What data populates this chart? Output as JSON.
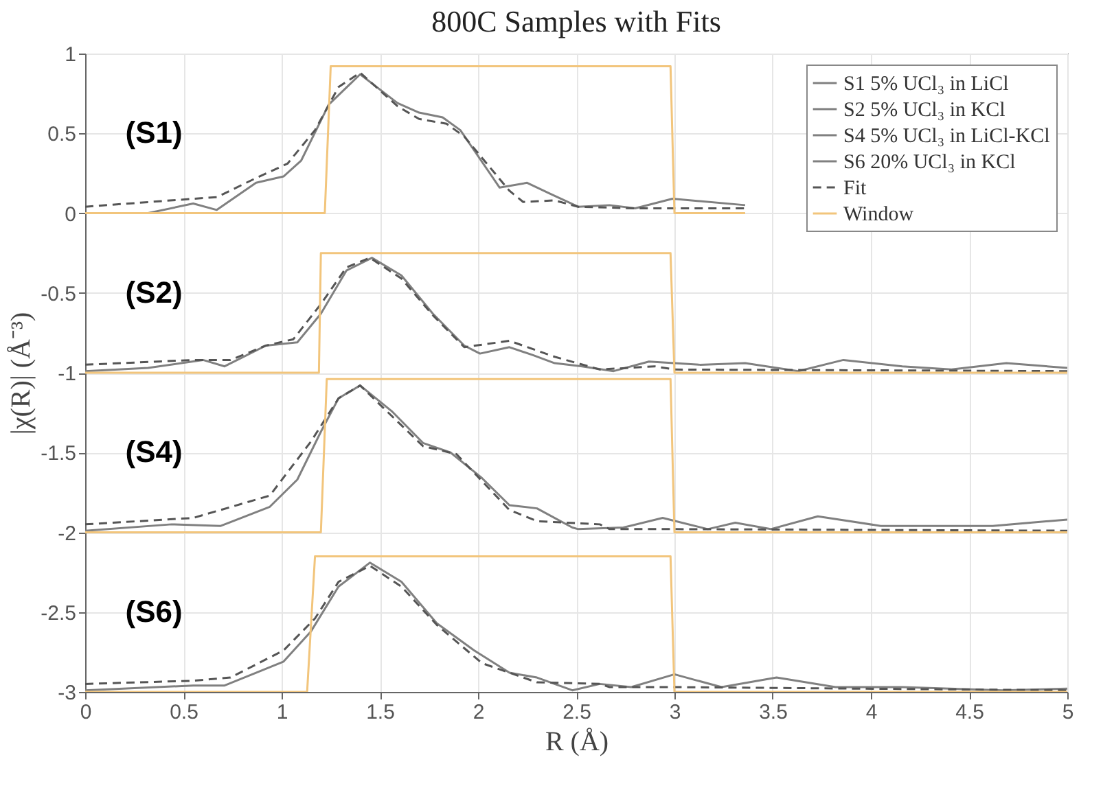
{
  "chart_data": {
    "type": "line",
    "title": "800C Samples with Fits",
    "xlabel": "R (Å)",
    "ylabel": "|χ(R)| (Å⁻³)",
    "xlim": [
      0,
      5
    ],
    "ylim": [
      -3,
      1
    ],
    "xticks": [
      0,
      0.5,
      1,
      1.5,
      2,
      2.5,
      3,
      3.5,
      4,
      4.5,
      5
    ],
    "yticks": [
      -3,
      -2.5,
      -2,
      -1.5,
      -1,
      -0.5,
      0,
      0.5,
      1
    ],
    "grid": true,
    "legend": "top right",
    "annotations": [
      "(S1)",
      "(S2)",
      "(S4)",
      "(S6)"
    ],
    "series": [
      {
        "name": "S1 5% UCl₃ in LiCl",
        "color": "#808080",
        "line_style": "solid",
        "x": [
          0,
          0.32,
          0.55,
          0.67,
          0.87,
          1.01,
          1.1,
          1.24,
          1.4,
          1.59,
          1.7,
          1.82,
          1.91,
          2.11,
          2.25,
          2.37,
          2.51,
          2.67,
          2.8,
          2.99,
          3.36
        ],
        "values": [
          0,
          0,
          0.06,
          0.02,
          0.19,
          0.23,
          0.33,
          0.68,
          0.87,
          0.69,
          0.63,
          0.6,
          0.52,
          0.16,
          0.19,
          0.12,
          0.04,
          0.05,
          0.03,
          0.09,
          0.05
        ]
      },
      {
        "name": "S2 5% UCl₃ in KCl",
        "color": "#808080",
        "line_style": "solid",
        "x": [
          0,
          0.32,
          0.6,
          0.71,
          0.92,
          1.08,
          1.2,
          1.33,
          1.46,
          1.61,
          1.77,
          1.93,
          2.01,
          2.16,
          2.28,
          2.39,
          2.53,
          2.69,
          2.87,
          3.13,
          3.36,
          3.63,
          3.86,
          4.16,
          4.41,
          4.69,
          5
        ],
        "values": [
          -0.99,
          -0.97,
          -0.92,
          -0.96,
          -0.83,
          -0.81,
          -0.63,
          -0.36,
          -0.28,
          -0.39,
          -0.63,
          -0.83,
          -0.88,
          -0.84,
          -0.89,
          -0.94,
          -0.96,
          -0.99,
          -0.93,
          -0.95,
          -0.94,
          -0.99,
          -0.92,
          -0.96,
          -0.98,
          -0.94,
          -0.97
        ]
      },
      {
        "name": "S4 5% UCl₃ in LiCl-KCl",
        "color": "#808080",
        "line_style": "solid",
        "x": [
          0,
          0.44,
          0.69,
          0.94,
          1.08,
          1.2,
          1.29,
          1.4,
          1.56,
          1.72,
          1.86,
          2.02,
          2.16,
          2.3,
          2.48,
          2.51,
          2.74,
          2.94,
          3.17,
          3.31,
          3.49,
          3.73,
          4.05,
          4.62,
          5
        ],
        "values": [
          -1.99,
          -1.95,
          -1.96,
          -1.84,
          -1.67,
          -1.37,
          -1.16,
          -1.08,
          -1.24,
          -1.44,
          -1.5,
          -1.66,
          -1.83,
          -1.85,
          -1.97,
          -1.98,
          -1.97,
          -1.91,
          -1.98,
          -1.94,
          -1.98,
          -1.9,
          -1.96,
          -1.96,
          -1.92
        ]
      },
      {
        "name": "S6 20% UCl₃ in KCl",
        "color": "#808080",
        "line_style": "solid",
        "x": [
          0,
          0.55,
          0.71,
          0.87,
          1.01,
          1.15,
          1.29,
          1.45,
          1.61,
          1.79,
          1.98,
          2.16,
          2.3,
          2.48,
          2.62,
          2.78,
          3.0,
          3.24,
          3.52,
          3.82,
          4.16,
          4.67,
          5
        ],
        "values": [
          -2.99,
          -2.96,
          -2.96,
          -2.88,
          -2.81,
          -2.62,
          -2.34,
          -2.19,
          -2.31,
          -2.57,
          -2.74,
          -2.88,
          -2.91,
          -2.99,
          -2.95,
          -2.97,
          -2.89,
          -2.97,
          -2.91,
          -2.97,
          -2.97,
          -2.99,
          -2.98
        ]
      },
      {
        "name": "Fit",
        "color": "#555555",
        "line_style": "dashed",
        "x": [
          0,
          0.55,
          0.67,
          0.87,
          1.03,
          1.17,
          1.29,
          1.4,
          1.59,
          1.7,
          1.84,
          1.93,
          2.16,
          2.23,
          2.39,
          2.51,
          2.8,
          3.1,
          3.36
        ],
        "values": [
          0.04,
          0.09,
          0.1,
          0.22,
          0.31,
          0.52,
          0.79,
          0.88,
          0.67,
          0.59,
          0.56,
          0.48,
          0.14,
          0.07,
          0.08,
          0.04,
          0.03,
          0.03,
          0.03
        ]
      },
      {
        "color": "#555555",
        "line_style": "dashed",
        "x": [
          0,
          0.55,
          0.74,
          0.92,
          1.06,
          1.2,
          1.33,
          1.45,
          1.61,
          1.77,
          1.93,
          2.16,
          2.39,
          2.62,
          2.9,
          3.0,
          5
        ],
        "values": [
          -0.95,
          -0.92,
          -0.92,
          -0.83,
          -0.79,
          -0.57,
          -0.34,
          -0.28,
          -0.41,
          -0.64,
          -0.84,
          -0.8,
          -0.9,
          -0.98,
          -0.96,
          -0.98,
          -0.99
        ]
      },
      {
        "color": "#555555",
        "line_style": "dashed",
        "x": [
          0,
          0.55,
          0.94,
          1.15,
          1.29,
          1.4,
          1.72,
          1.89,
          2.16,
          2.3,
          2.62,
          2.67,
          3.0,
          5
        ],
        "values": [
          -1.95,
          -1.91,
          -1.77,
          -1.43,
          -1.16,
          -1.08,
          -1.46,
          -1.51,
          -1.86,
          -1.93,
          -1.95,
          -1.98,
          -1.98,
          -1.99
        ]
      },
      {
        "color": "#555555",
        "line_style": "dashed",
        "x": [
          0,
          0.55,
          0.74,
          1.01,
          1.17,
          1.29,
          1.45,
          1.61,
          1.79,
          2.02,
          2.3,
          2.62,
          2.67,
          3.0,
          5
        ],
        "values": [
          -2.95,
          -2.93,
          -2.91,
          -2.74,
          -2.54,
          -2.31,
          -2.21,
          -2.34,
          -2.58,
          -2.82,
          -2.94,
          -2.95,
          -2.97,
          -2.97,
          -2.99
        ]
      },
      {
        "name": "Window",
        "color": "#f2c57c",
        "line_style": "solid",
        "x": [
          0,
          1.22,
          1.25,
          2.98,
          3.0,
          3.36
        ],
        "values": [
          0,
          0,
          0.92,
          0.92,
          0,
          0
        ]
      },
      {
        "color": "#f2c57c",
        "line_style": "solid",
        "x": [
          0,
          1.19,
          1.2,
          2.98,
          3.0,
          5
        ],
        "values": [
          -1,
          -1,
          -0.25,
          -0.25,
          -1,
          -1
        ]
      },
      {
        "color": "#f2c57c",
        "line_style": "solid",
        "x": [
          0,
          1.2,
          1.23,
          2.98,
          3.0,
          5
        ],
        "values": [
          -2,
          -2,
          -1.04,
          -1.04,
          -2,
          -2
        ]
      },
      {
        "color": "#f2c57c",
        "line_style": "solid",
        "x": [
          0,
          1.13,
          1.17,
          2.98,
          3.0,
          5
        ],
        "values": [
          -3,
          -3,
          -2.15,
          -2.15,
          -3,
          -3
        ]
      }
    ]
  }
}
